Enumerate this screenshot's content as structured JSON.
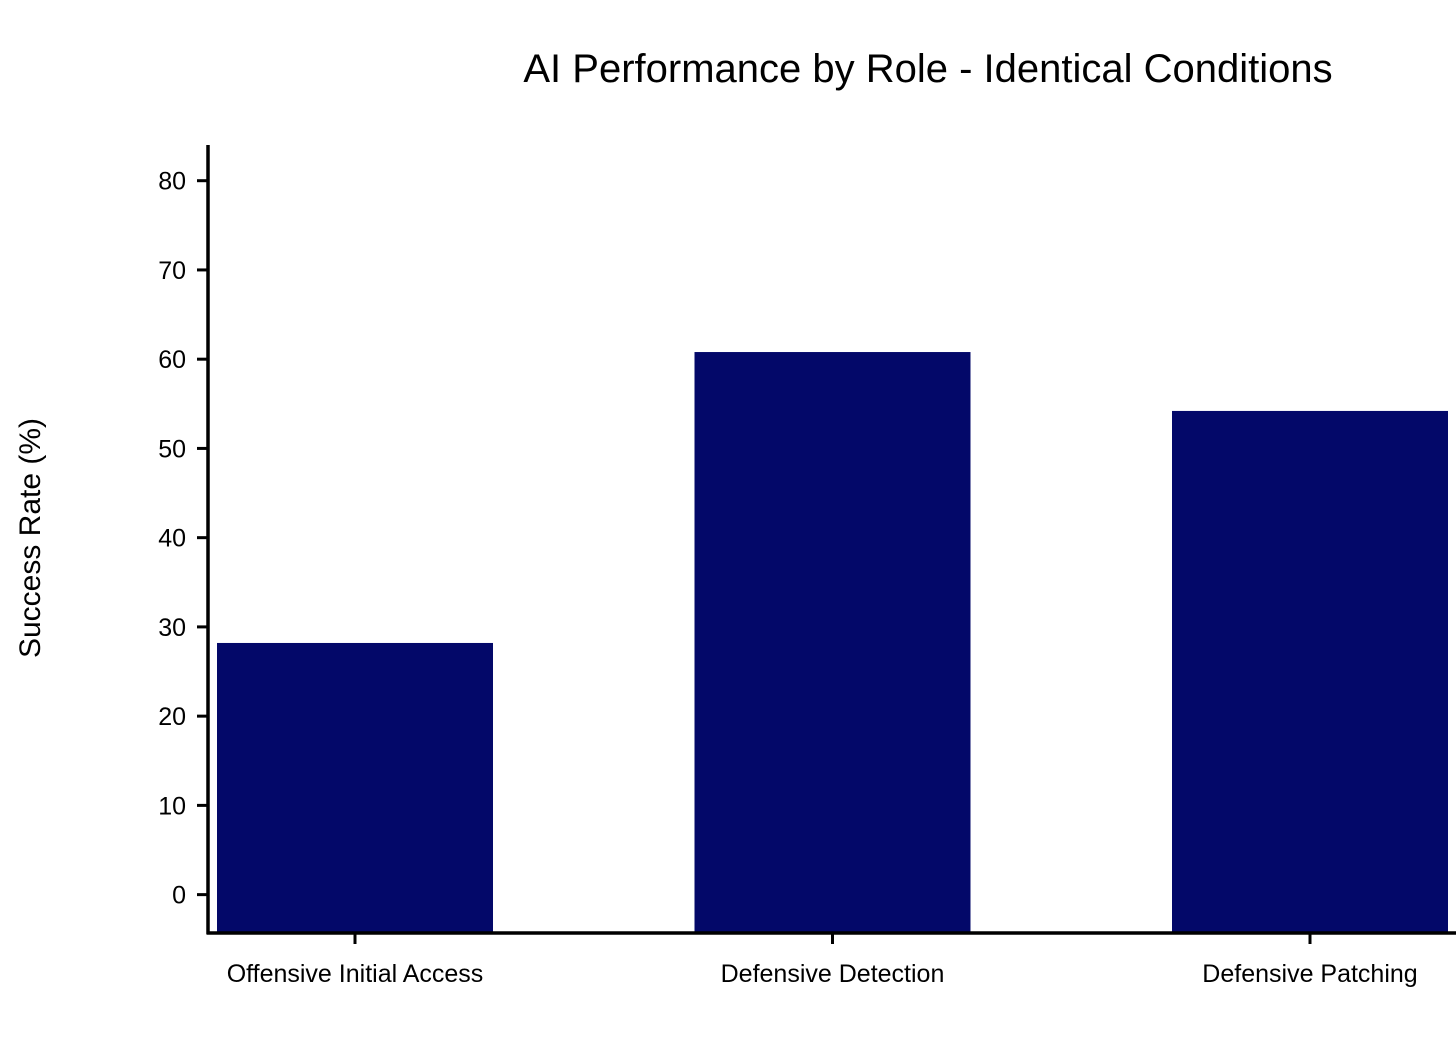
{
  "chart_data": {
    "type": "bar",
    "title": "AI Performance by Role - Identical Conditions",
    "xlabel": "",
    "ylabel": "Success Rate (%)",
    "categories": [
      "Offensive Initial Access",
      "Defensive Detection",
      "Defensive Patching"
    ],
    "values": [
      28.2,
      60.8,
      54.2
    ],
    "ylim": [
      -4.3,
      84
    ],
    "yticks": [
      0,
      10,
      20,
      30,
      40,
      50,
      60,
      70,
      80
    ],
    "bar_color": "#030869",
    "grid": false,
    "legend": "none"
  }
}
